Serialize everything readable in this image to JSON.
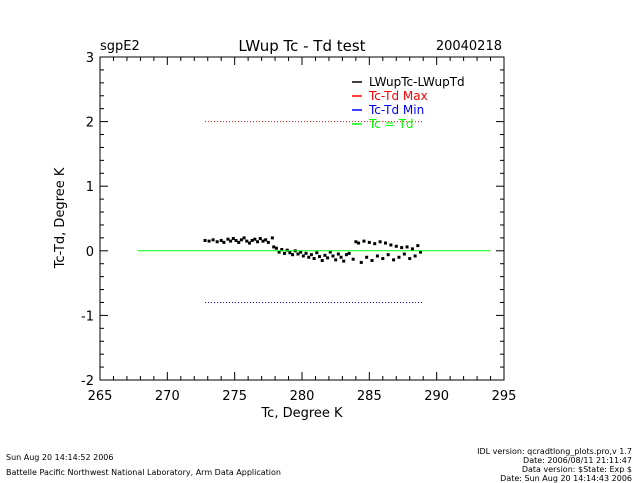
{
  "chart_data": {
    "type": "scatter",
    "site": "sgpE2",
    "title": "LWup Tc - Td test",
    "date": "20040218",
    "xlabel": "Tc, Degree K",
    "ylabel": "Tc-Td, Degree K",
    "xlim": [
      265,
      295
    ],
    "ylim": [
      -2,
      3
    ],
    "xticks": [
      "265",
      "270",
      "275",
      "280",
      "285",
      "290",
      "295"
    ],
    "yticks": [
      "-2",
      "-1",
      "0",
      "1",
      "2",
      "3"
    ],
    "legend_position": "top-right",
    "series": [
      {
        "name": "LWupTc-LWupTd",
        "color": "#000000",
        "style": "points",
        "points": [
          [
            272.8,
            0.16
          ],
          [
            273.1,
            0.15
          ],
          [
            273.4,
            0.17
          ],
          [
            273.7,
            0.14
          ],
          [
            274.0,
            0.16
          ],
          [
            274.2,
            0.13
          ],
          [
            274.5,
            0.18
          ],
          [
            274.7,
            0.15
          ],
          [
            274.9,
            0.19
          ],
          [
            275.1,
            0.16
          ],
          [
            275.3,
            0.13
          ],
          [
            275.5,
            0.17
          ],
          [
            275.7,
            0.2
          ],
          [
            275.9,
            0.15
          ],
          [
            276.1,
            0.12
          ],
          [
            276.3,
            0.16
          ],
          [
            276.5,
            0.18
          ],
          [
            276.7,
            0.14
          ],
          [
            276.9,
            0.19
          ],
          [
            277.1,
            0.15
          ],
          [
            277.3,
            0.17
          ],
          [
            277.5,
            0.13
          ],
          [
            277.8,
            0.2
          ],
          [
            277.9,
            0.06
          ],
          [
            278.1,
            0.04
          ],
          [
            278.3,
            -0.02
          ],
          [
            278.5,
            0.02
          ],
          [
            278.7,
            -0.04
          ],
          [
            278.9,
            0.01
          ],
          [
            279.1,
            -0.03
          ],
          [
            279.3,
            -0.06
          ],
          [
            279.5,
            0.0
          ],
          [
            279.7,
            -0.05
          ],
          [
            279.9,
            -0.02
          ],
          [
            280.1,
            -0.08
          ],
          [
            280.3,
            -0.04
          ],
          [
            280.5,
            -0.1
          ],
          [
            280.7,
            -0.06
          ],
          [
            280.9,
            -0.12
          ],
          [
            281.1,
            -0.03
          ],
          [
            281.3,
            -0.09
          ],
          [
            281.5,
            -0.15
          ],
          [
            281.7,
            -0.07
          ],
          [
            281.9,
            -0.11
          ],
          [
            282.1,
            -0.02
          ],
          [
            282.3,
            -0.08
          ],
          [
            282.5,
            -0.14
          ],
          [
            282.7,
            -0.05
          ],
          [
            282.9,
            -0.1
          ],
          [
            283.1,
            -0.16
          ],
          [
            283.3,
            -0.06
          ],
          [
            283.5,
            -0.04
          ],
          [
            283.8,
            -0.13
          ],
          [
            284.0,
            0.14
          ],
          [
            284.2,
            0.12
          ],
          [
            284.4,
            -0.18
          ],
          [
            284.6,
            0.15
          ],
          [
            284.8,
            -0.1
          ],
          [
            285.0,
            0.13
          ],
          [
            285.2,
            -0.15
          ],
          [
            285.4,
            0.11
          ],
          [
            285.6,
            -0.08
          ],
          [
            285.8,
            0.14
          ],
          [
            286.0,
            -0.12
          ],
          [
            286.2,
            0.12
          ],
          [
            286.4,
            -0.06
          ],
          [
            286.6,
            0.09
          ],
          [
            286.8,
            -0.14
          ],
          [
            287.0,
            0.07
          ],
          [
            287.2,
            -0.1
          ],
          [
            287.4,
            0.05
          ],
          [
            287.6,
            -0.05
          ],
          [
            287.8,
            0.06
          ],
          [
            288.0,
            -0.12
          ],
          [
            288.2,
            0.03
          ],
          [
            288.4,
            -0.08
          ],
          [
            288.6,
            0.08
          ],
          [
            288.8,
            -0.02
          ]
        ]
      },
      {
        "name": "Tc-Td Max",
        "color": "#ff0000",
        "style": "dotted",
        "points": [
          [
            272.8,
            2.0
          ],
          [
            289.0,
            2.0
          ]
        ]
      },
      {
        "name": "Tc-Td Min",
        "color": "#0000ff",
        "style": "dotted",
        "points": [
          [
            272.8,
            -0.8
          ],
          [
            289.0,
            -0.8
          ]
        ]
      },
      {
        "name": "Tc = Td",
        "color": "#00ff00",
        "style": "solid",
        "points": [
          [
            267.8,
            0.0
          ],
          [
            294.0,
            0.0
          ]
        ]
      }
    ]
  },
  "footer": {
    "timestamp": "Sun Aug 20 14:14:52 2006",
    "organization": "Battelle Pacific Northwest National Laboratory, Arm Data Application",
    "idl_lines": [
      "IDL version: qcradtlong_plots.pro,v 1.7",
      "Date: 2006/08/11 21:11:47",
      "Data version: $State: Exp $",
      "Date: Sun Aug 20 14:14:43 2006"
    ]
  }
}
